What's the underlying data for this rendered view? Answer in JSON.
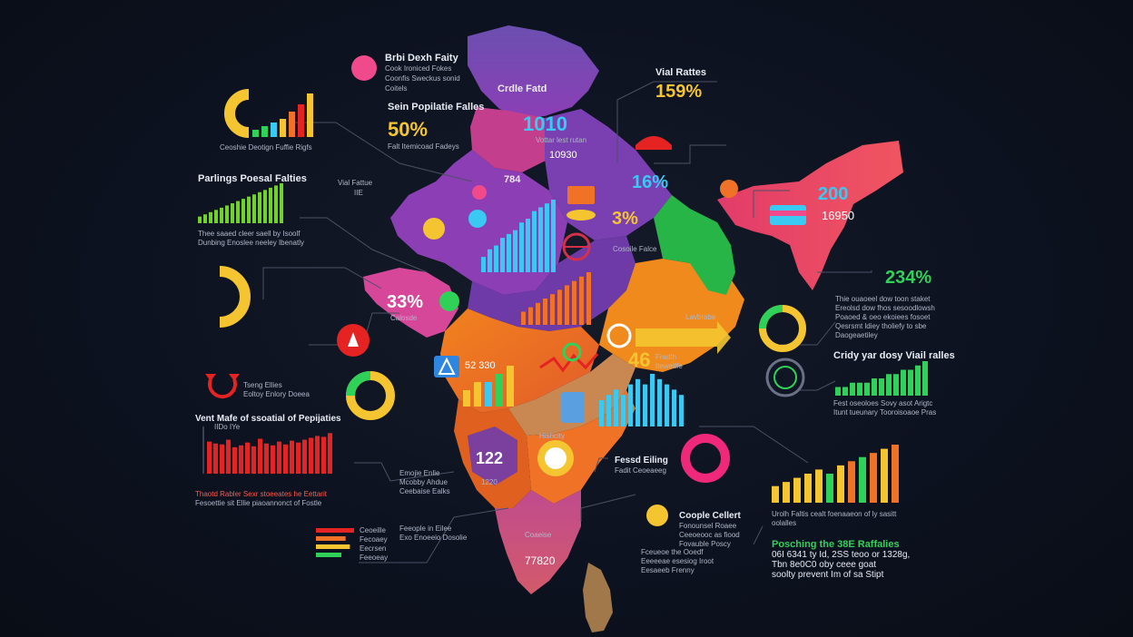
{
  "labels": {
    "brbi_title": "Brbi Dexh Faity",
    "brbi_text": [
      "Cook Ironiced Fokes",
      "Coonfis Sweckus sonid",
      "Coitels"
    ],
    "cradle": "Crdle Fatd",
    "vial_rates": "Vial Rattes",
    "pct_159": "159%",
    "sein_pop": "Sein Popilatie Falles",
    "pct_50": "50%",
    "pct_50_text": "Falt Itemicoad Fadeys",
    "n_1010": "1010",
    "n_10930": "10930",
    "n_1010_text": "Vottar lest rutan",
    "pct_16": "16%",
    "n_200": "200",
    "n_16950": "16950",
    "gauge_text": "Ceoshie Deotign Fuffie Rigfs",
    "parlings_title": "Parlings Poesal Falties",
    "parlings_text": [
      "Thee saaed cleer saell by Isoolf",
      "Dunbing Enoslee neeley Ibenatly"
    ],
    "vial_fal": "Vial Fattue",
    "vial_fal_sub": "IIE",
    "n_784": "784",
    "pct_3": "3%",
    "gracio": "Cosoile Falce",
    "pct_33": "33%",
    "pct_33_sub": "Calosde",
    "pct_234": "234%",
    "pct_234_text": [
      "Thie ouaoeel dow toon staket",
      "Ereolsd dow fhos sesoodlowsh",
      "Poaoed & oeo ekoiees fosoet",
      "Qesrsmt ldiey tholiefy to sbe",
      "Daogeaetiley"
    ],
    "lavbrabe": "Lavbrabe",
    "n_46": "46",
    "n_46_text": [
      "Fradth",
      "Itewetlfe"
    ],
    "cridy_title": "Cridy yar dosy Viail ralles",
    "cridy_text": [
      "Fest oseoloes Sovy asot Arigtc",
      "Itunt tueunary Tooroisoaoe Pras"
    ],
    "n_52330": "52 330",
    "tseng": "Tseng Ellies",
    "tseng_sub": "Eoltoy Enlory Doeea",
    "vent_title": "Vent Mafe of ssoatial of Pepijaties",
    "vent_axis_caption": "IIDo IYe",
    "vent_text": [
      "Thaotd Rabler Sexr stoeeates he Eettarit",
      "Fesoettie sit Ellie piaoannonct of Fostle"
    ],
    "n_122": "122",
    "n_1220": "1220",
    "fuli": "Hishcity",
    "fessd": "Fessd Eiling",
    "fessd_sub": "Fadit Ceoeaeeg",
    "legend_mid": [
      "Emojie Enlie",
      "Mcobby Ahdue",
      "Ceebaise Ealks"
    ],
    "fempe": [
      "Feeople in Eilee",
      "Exo Enoeeio Dosolie"
    ],
    "legend_bot": [
      "Ceoeille",
      "Fecoaey",
      "Eecrsen",
      "Feeoeay"
    ],
    "coeaise": "Coaeise",
    "n_77820": "77820",
    "legend_low": [
      "Fceueoe the Ooedf",
      "Eeeeeae esesiog Iroot",
      "Eesaeeb Frenny"
    ],
    "couple": "Coople Cellert",
    "couple_text": [
      "Fonounsel Roaee",
      "Ceeoeooc as fiood",
      "Fovauble Poscy"
    ],
    "urah": [
      "Urolh Faltis cealt foenaaeon of ly sasitt",
      "oolalles"
    ],
    "poschng": [
      "Posching the 38E Raffalies",
      "06I 6341 ty Id, 2SS teoo or 1328g,",
      "Tbn 8e0C0 oby ceee goat",
      "soolty prevent Im of sa Stipt"
    ]
  },
  "chart_data": [
    {
      "type": "bar",
      "name": "gauge_bars",
      "values": [
        2,
        3,
        4,
        5,
        7,
        9,
        12
      ]
    },
    {
      "type": "bar",
      "name": "parlings_bars",
      "values": [
        3,
        4,
        5,
        6,
        7,
        8,
        9,
        10,
        11,
        12,
        13,
        14,
        15,
        16,
        17,
        18
      ]
    },
    {
      "type": "bar",
      "name": "vent_bars",
      "ylim": [
        0,
        5
      ],
      "values": [
        3.4,
        3.2,
        3.1,
        3.6,
        2.8,
        3.0,
        3.3,
        2.9,
        3.7,
        3.2,
        3.0,
        3.4,
        3.1,
        3.5,
        3.3,
        3.6,
        3.8,
        4.0,
        3.9,
        4.3
      ]
    },
    {
      "type": "bar",
      "name": "cridy_bars",
      "values": [
        2,
        2,
        3,
        3,
        3,
        4,
        4,
        5,
        5,
        6,
        6,
        7,
        8
      ]
    },
    {
      "type": "bar",
      "name": "color_bars",
      "values": [
        4,
        5,
        6,
        7,
        8,
        7,
        9,
        10,
        11,
        12,
        13,
        14
      ]
    },
    {
      "type": "bar",
      "name": "center_bars",
      "values": [
        4,
        6,
        7,
        9,
        10,
        11,
        13,
        14,
        16,
        17,
        18,
        19
      ]
    },
    {
      "type": "bar",
      "name": "ctr_low_bars",
      "values": [
        3,
        4,
        5,
        6,
        7,
        8,
        9,
        10,
        11,
        12
      ]
    },
    {
      "type": "bar",
      "name": "mini_bars",
      "values": [
        2,
        3,
        3,
        4,
        5
      ]
    },
    {
      "type": "bar",
      "name": "sblue_bars",
      "values": [
        5,
        6,
        7,
        6,
        8,
        9,
        8,
        10,
        9,
        8,
        7,
        6
      ]
    },
    {
      "type": "bar",
      "name": "legend_bars",
      "values": [
        9,
        7,
        8,
        6
      ]
    }
  ],
  "colors": {
    "bg": "#0b0f1a",
    "yellow": "#f4c531",
    "green": "#2fd158",
    "cyan": "#39c9f2",
    "red": "#e52323",
    "pink": "#f04a8c",
    "purple": "#8a4bb7",
    "orange": "#f2821e"
  },
  "icons": [
    "heart-icon",
    "target-icon",
    "crab-icon",
    "fire-icon",
    "hand-icon",
    "arrows-icon",
    "triangle-icon",
    "globe-icon",
    "leaf-icon",
    "lightbulb-icon"
  ]
}
